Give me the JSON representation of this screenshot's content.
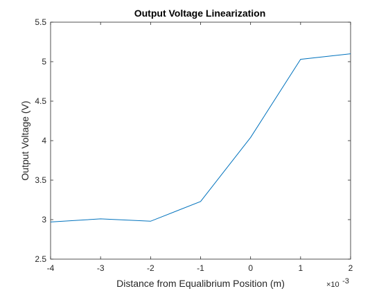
{
  "chart_data": {
    "type": "line",
    "title": "Output Voltage Linearization",
    "xlabel": "Distance from Equalibrium Position (m)",
    "ylabel": "Output Voltage (V)",
    "x_multiplier_label": "×10",
    "x_multiplier_exponent": "-3",
    "xlim": [
      -4,
      2
    ],
    "ylim": [
      2.5,
      5.5
    ],
    "x_ticks": [
      -4,
      -3,
      -2,
      -1,
      0,
      1,
      2
    ],
    "x_tick_labels": [
      "-4",
      "-3",
      "-2",
      "-1",
      "0",
      "1",
      "2"
    ],
    "y_ticks": [
      2.5,
      3,
      3.5,
      4,
      4.5,
      5,
      5.5
    ],
    "y_tick_labels": [
      "2.5",
      "3",
      "3.5",
      "4",
      "4.5",
      "5",
      "5.5"
    ],
    "grid": false,
    "series": [
      {
        "x": [
          -4,
          -3,
          -2,
          -1,
          0,
          1,
          2
        ],
        "y": [
          2.97,
          3.01,
          2.98,
          3.23,
          4.04,
          5.03,
          5.1
        ],
        "color": "#0072BD"
      }
    ]
  }
}
